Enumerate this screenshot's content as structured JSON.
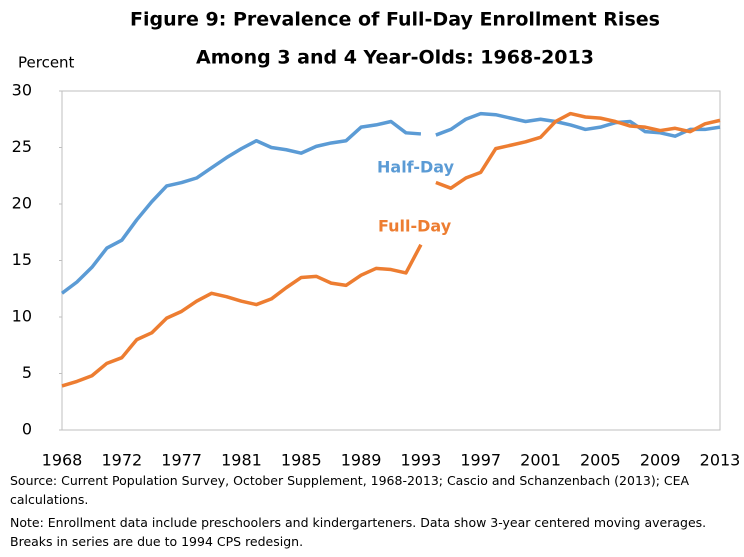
{
  "chart_data": {
    "type": "line",
    "title": [
      "Figure 9: Prevalence of Full-Day Enrollment Rises",
      "Among 3 and 4 Year-Olds: 1968-2013"
    ],
    "y_label": "Percent",
    "categories": [
      "1968",
      null,
      null,
      null,
      "1972",
      null,
      null,
      null,
      "1977",
      null,
      null,
      null,
      "1981",
      null,
      null,
      null,
      "1985",
      null,
      null,
      null,
      "1989",
      null,
      null,
      null,
      "1993",
      null,
      null,
      null,
      "1997",
      null,
      null,
      null,
      "2001",
      null,
      null,
      null,
      "2005",
      null,
      null,
      null,
      "2009",
      null,
      null,
      null,
      "2013"
    ],
    "break_after": "1993",
    "series": [
      {
        "name": "Half-Day",
        "color": "#5b9bd5",
        "values": [
          12.1,
          13.1,
          14.4,
          16.1,
          16.8,
          18.6,
          20.2,
          21.6,
          21.9,
          22.3,
          23.2,
          24.1,
          24.9,
          25.6,
          25.0,
          24.8,
          24.5,
          25.1,
          25.4,
          25.6,
          26.8,
          27.0,
          27.3,
          26.3,
          26.2,
          26.1,
          26.6,
          27.5,
          28.0,
          27.9,
          27.6,
          27.3,
          27.5,
          27.3,
          27.0,
          26.6,
          26.8,
          27.2,
          27.3,
          26.4,
          26.3,
          26.0,
          26.6,
          26.6,
          26.8
        ]
      },
      {
        "name": "Full-Day",
        "color": "#ed7d31",
        "values": [
          3.9,
          4.3,
          4.8,
          5.9,
          6.4,
          8.0,
          8.6,
          9.9,
          10.5,
          11.4,
          12.1,
          11.8,
          11.4,
          11.1,
          11.6,
          12.6,
          13.5,
          13.6,
          13.0,
          12.8,
          13.7,
          14.3,
          14.2,
          13.9,
          16.4,
          21.9,
          21.4,
          22.3,
          22.8,
          24.9,
          25.2,
          25.5,
          25.9,
          27.3,
          28.0,
          27.7,
          27.6,
          27.3,
          26.9,
          26.8,
          26.5,
          26.7,
          26.4,
          27.1,
          27.4
        ]
      }
    ],
    "ylim": [
      0,
      30
    ],
    "yticks": [
      0,
      5,
      10,
      15,
      20,
      25,
      30
    ],
    "notes": [
      "Source: Current Population Survey, October Supplement, 1968-2013; Cascio and Schanzenbach (2013); CEA calculations.",
      "Note: Enrollment data include preschoolers and kindergarteners. Data show 3-year centered moving averages. Breaks in series are due to 1994 CPS redesign."
    ]
  }
}
